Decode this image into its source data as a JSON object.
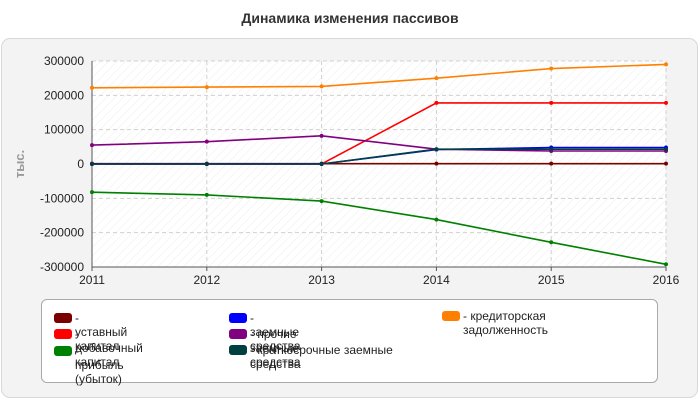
{
  "chart_data": {
    "type": "line",
    "title": "Динамика изменения пассивов",
    "ylabel": "тыс.",
    "xlabel": "",
    "x": [
      "2011",
      "2012",
      "2013",
      "2014",
      "2015",
      "2016"
    ],
    "ylim": [
      -300000,
      300000
    ],
    "yticks": [
      300000,
      200000,
      100000,
      0,
      -100000,
      -200000,
      -300000
    ],
    "ytick_labels": [
      "300000",
      "200000",
      "100000",
      "0",
      "-100000",
      "-200000",
      "-300000"
    ],
    "grid": true,
    "legend_position": "bottom",
    "series": [
      {
        "name": "уставный капитал",
        "color": "#7a0000",
        "values": [
          1000,
          1000,
          1000,
          1000,
          1000,
          1000
        ]
      },
      {
        "name": "добавочный капитал",
        "color": "#ff0000",
        "values": [
          0,
          0,
          0,
          178000,
          178000,
          178000
        ]
      },
      {
        "name": "прибыль (убыток)",
        "color": "#008000",
        "values": [
          -82000,
          -90000,
          -108000,
          -162000,
          -228000,
          -292000
        ]
      },
      {
        "name": "заемные средства",
        "color": "#0000ff",
        "values": [
          0,
          0,
          0,
          42000,
          48000,
          48000
        ]
      },
      {
        "name": "прочие заемные средства",
        "color": "#800080",
        "values": [
          55000,
          65000,
          82000,
          43000,
          38000,
          38000
        ]
      },
      {
        "name": "краткосрочные заемные средства",
        "color": "#004040",
        "values": [
          0,
          0,
          0,
          43000,
          43000,
          43000
        ]
      },
      {
        "name": "кредиторская задолженность",
        "color": "#ff8000",
        "values": [
          222000,
          224000,
          226000,
          250000,
          278000,
          290000
        ]
      }
    ]
  },
  "legend": {
    "prefix": "- "
  }
}
